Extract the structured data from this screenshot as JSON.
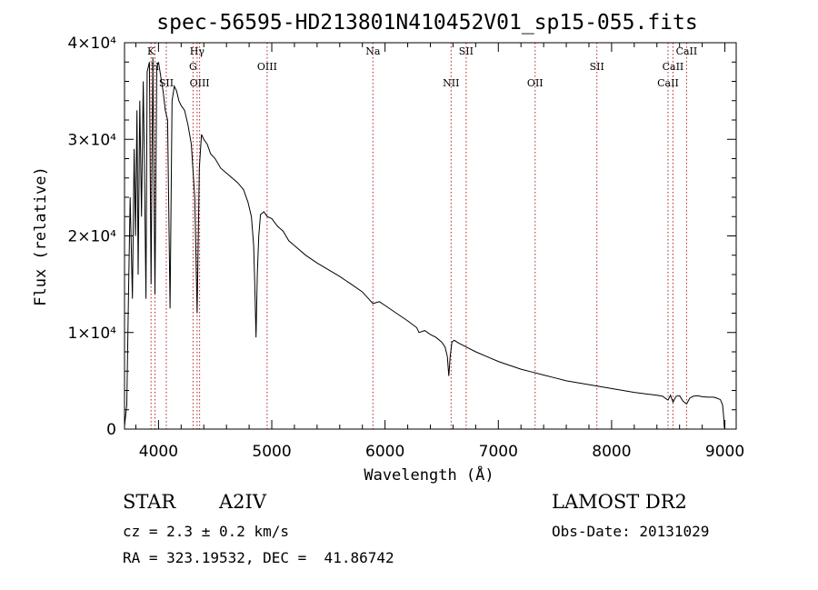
{
  "chart_data": {
    "type": "line",
    "title": "spec-56595-HD213801N410452V01_sp15-055.fits",
    "xlabel": "Wavelength (Å)",
    "ylabel": "Flux (relative)",
    "xlim": [
      3700,
      9100
    ],
    "ylim": [
      0,
      40000
    ],
    "x_ticks": [
      4000,
      5000,
      6000,
      7000,
      8000,
      9000
    ],
    "y_ticks": [
      {
        "value": 0,
        "label": "0"
      },
      {
        "value": 10000,
        "label": "1×10⁴"
      },
      {
        "value": 20000,
        "label": "2×10⁴"
      },
      {
        "value": 30000,
        "label": "3×10⁴"
      },
      {
        "value": 40000,
        "label": "4×10⁴"
      }
    ],
    "grid": false,
    "line_color": "#000000",
    "marker_color": "#b22222",
    "lines": [
      {
        "label": "K",
        "wavelength": 3934,
        "row": 0
      },
      {
        "label": "H",
        "wavelength": 3969,
        "row": 1
      },
      {
        "label": "SII",
        "wavelength": 4069,
        "row": 2
      },
      {
        "label": "Hγ",
        "wavelength": 4341,
        "row": 0
      },
      {
        "label": "G",
        "wavelength": 4305,
        "row": 1
      },
      {
        "label": "OIII",
        "wavelength": 4363,
        "row": 2
      },
      {
        "label": "OIII",
        "wavelength": 4959,
        "row": 1
      },
      {
        "label": "Na",
        "wavelength": 5893,
        "row": 0
      },
      {
        "label": "NII",
        "wavelength": 6583,
        "row": 2
      },
      {
        "label": "SII",
        "wavelength": 6716,
        "row": 0
      },
      {
        "label": "OII",
        "wavelength": 7325,
        "row": 2
      },
      {
        "label": "SII",
        "wavelength": 7870,
        "row": 1
      },
      {
        "label": "CaII",
        "wavelength": 8662,
        "row": 0
      },
      {
        "label": "CaII",
        "wavelength": 8542,
        "row": 1
      },
      {
        "label": "CaII",
        "wavelength": 8498,
        "row": 2
      }
    ],
    "spectrum": {
      "x": [
        3700,
        3720,
        3735,
        3750,
        3770,
        3785,
        3797,
        3810,
        3820,
        3835,
        3850,
        3865,
        3875,
        3889,
        3900,
        3920,
        3934,
        3950,
        3969,
        3985,
        4000,
        4020,
        4040,
        4060,
        4080,
        4102,
        4120,
        4140,
        4160,
        4180,
        4200,
        4230,
        4260,
        4290,
        4320,
        4341,
        4360,
        4380,
        4400,
        4430,
        4460,
        4500,
        4550,
        4600,
        4650,
        4700,
        4750,
        4790,
        4820,
        4840,
        4850,
        4861,
        4872,
        4885,
        4900,
        4930,
        4960,
        5000,
        5050,
        5100,
        5150,
        5200,
        5300,
        5400,
        5500,
        5600,
        5700,
        5800,
        5893,
        5950,
        6000,
        6100,
        6200,
        6280,
        6300,
        6350,
        6400,
        6450,
        6500,
        6530,
        6550,
        6563,
        6575,
        6590,
        6610,
        6650,
        6700,
        6800,
        6900,
        7000,
        7100,
        7200,
        7300,
        7400,
        7500,
        7600,
        7700,
        7800,
        7900,
        8000,
        8100,
        8200,
        8300,
        8400,
        8450,
        8498,
        8520,
        8542,
        8570,
        8600,
        8630,
        8662,
        8690,
        8720,
        8760,
        8800,
        8850,
        8900,
        8930,
        8960,
        8980,
        8990,
        8995,
        9000,
        9010
      ],
      "y": [
        300,
        2500,
        14000,
        24000,
        13500,
        29000,
        20000,
        33000,
        16000,
        34000,
        22000,
        36000,
        28000,
        13500,
        37000,
        38000,
        15000,
        38500,
        14000,
        37500,
        38000,
        36500,
        35000,
        33000,
        32000,
        12500,
        34000,
        35500,
        35000,
        34000,
        33500,
        33000,
        31500,
        29500,
        24000,
        12000,
        27000,
        30500,
        30000,
        29500,
        28500,
        28000,
        27000,
        26500,
        26000,
        25500,
        24800,
        23500,
        22000,
        19000,
        15000,
        9500,
        16000,
        20000,
        22200,
        22500,
        22000,
        21800,
        21000,
        20500,
        19500,
        19000,
        18000,
        17200,
        16500,
        15800,
        15000,
        14200,
        13000,
        13200,
        12800,
        12000,
        11200,
        10500,
        10000,
        10200,
        9800,
        9500,
        9000,
        8500,
        7500,
        5500,
        7500,
        9000,
        9200,
        8900,
        8600,
        8000,
        7500,
        7000,
        6600,
        6200,
        5900,
        5600,
        5300,
        5000,
        4800,
        4600,
        4400,
        4200,
        4000,
        3800,
        3650,
        3500,
        3400,
        3000,
        3500,
        2800,
        3400,
        3450,
        2900,
        2600,
        3200,
        3400,
        3450,
        3350,
        3300,
        3300,
        3200,
        3050,
        2500,
        1200,
        200,
        0,
        0
      ]
    }
  },
  "footer": {
    "object_class": "STAR",
    "subclass": "A2IV",
    "redshift": "cz = 2.3 ± 0.2 km/s",
    "coordinates": "RA = 323.19532, DEC =  41.86742",
    "survey": "LAMOST DR2",
    "obs_date": "Obs-Date: 20131029"
  }
}
